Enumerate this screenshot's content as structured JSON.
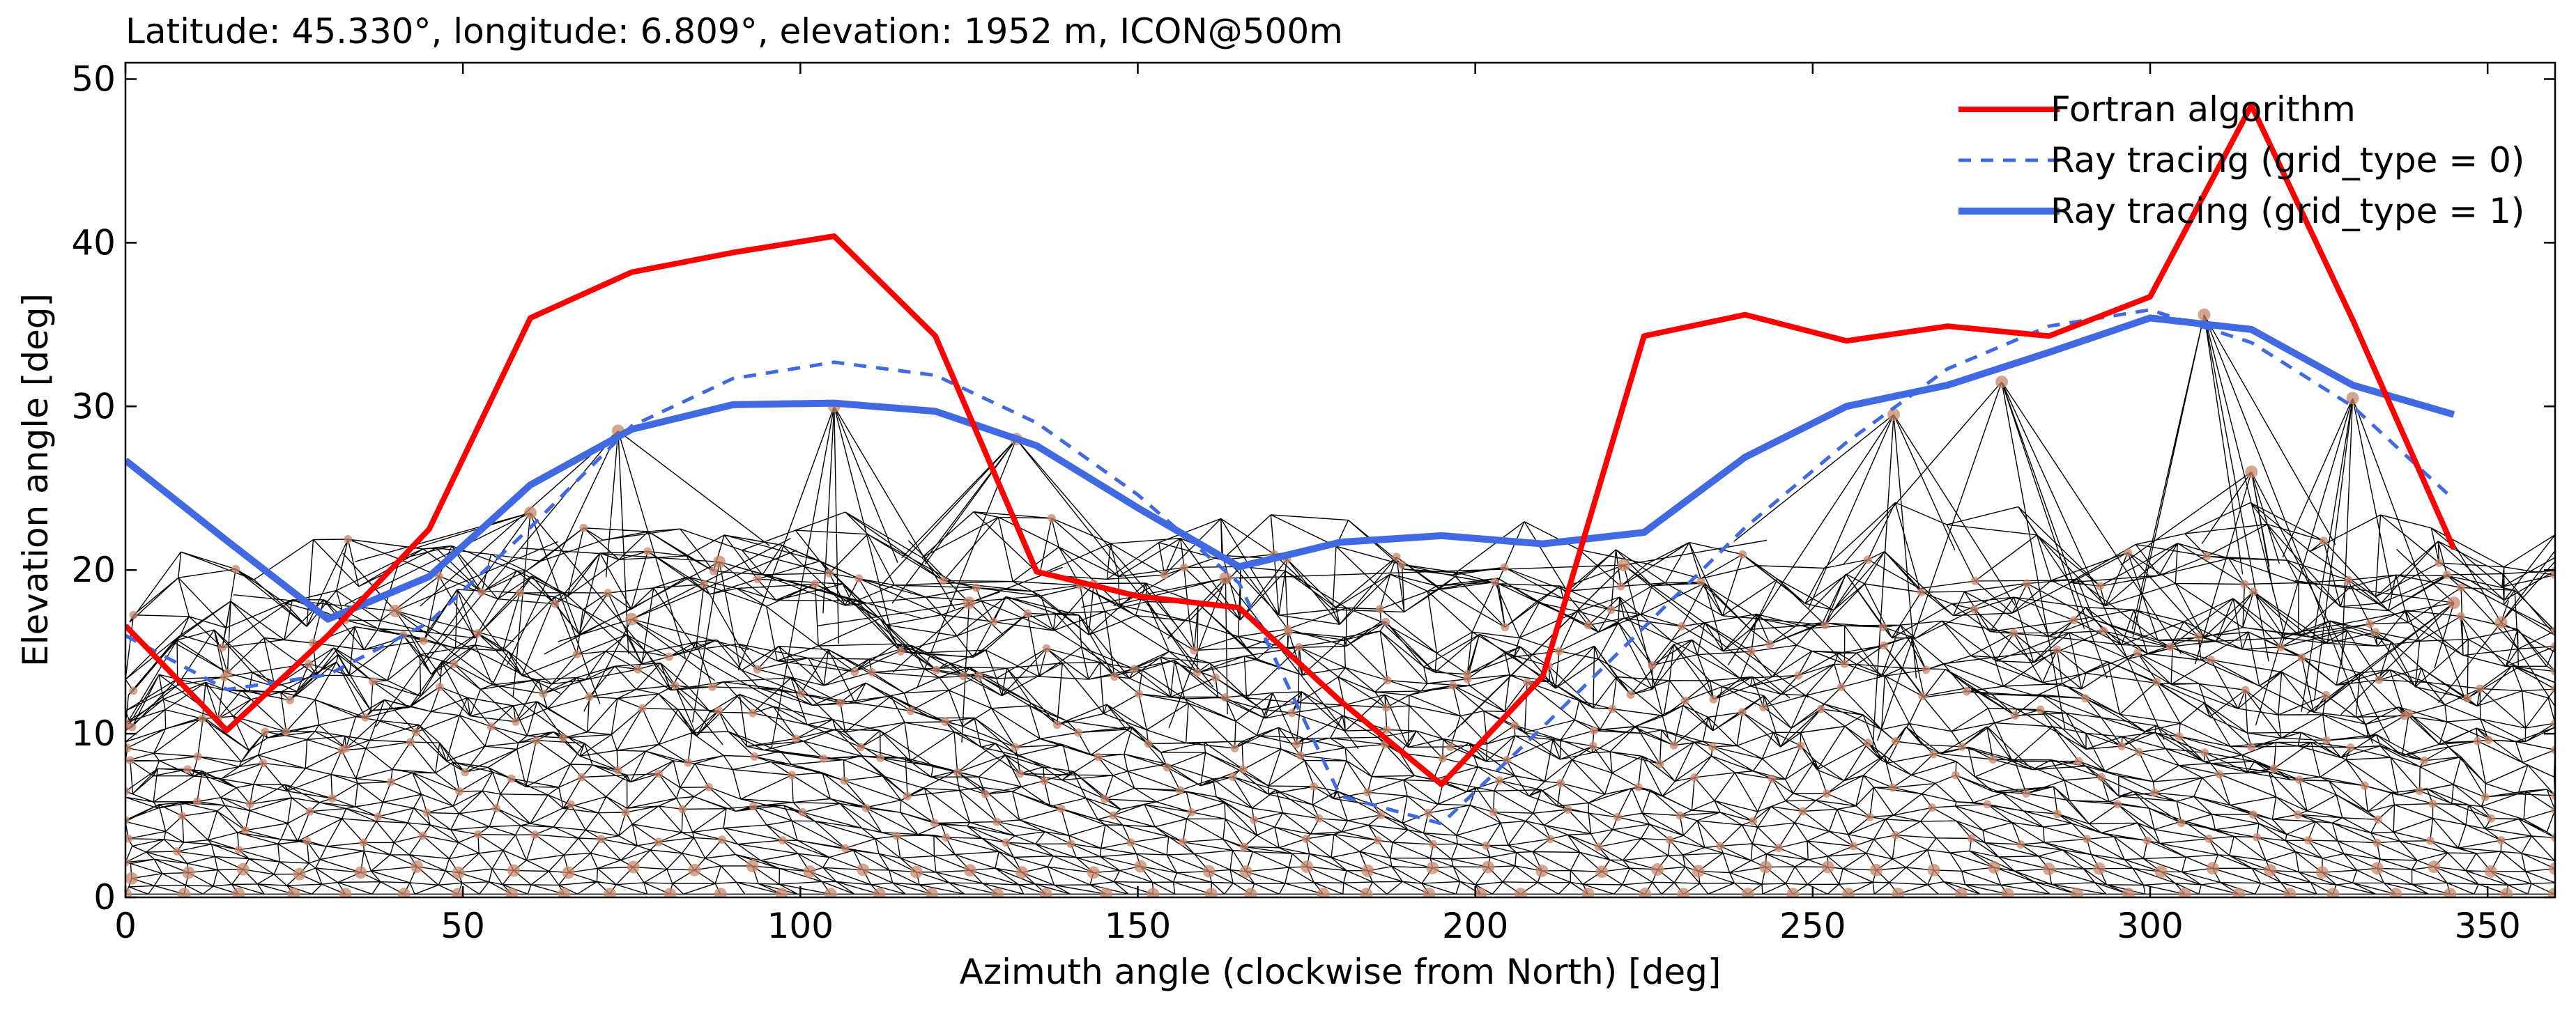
{
  "chart_data": {
    "type": "line",
    "title": "Latitude: 45.330°, longitude: 6.809°, elevation: 1952 m, ICON@500m",
    "xlabel": "Azimuth angle (clockwise from North) [deg]",
    "ylabel": "Elevation angle [deg]",
    "xlim": [
      0,
      360
    ],
    "ylim": [
      0,
      51
    ],
    "x_ticks": [
      0,
      50,
      100,
      150,
      200,
      250,
      300,
      350
    ],
    "y_ticks": [
      0,
      10,
      20,
      30,
      40,
      50
    ],
    "grid": false,
    "legend_position": "top-right",
    "colors": {
      "fortran": "#ff0000",
      "ray0": "#4169e1",
      "ray1": "#4169e1",
      "mesh": "#000000",
      "nodes": "#c8876a"
    },
    "series": [
      {
        "name": "Fortran algorithm",
        "style": "solid",
        "x": [
          0,
          15,
          30,
          45,
          60,
          75,
          90,
          105,
          120,
          135,
          150,
          165,
          180,
          195,
          210,
          225,
          240,
          255,
          270,
          285,
          300,
          315,
          330,
          345
        ],
        "y": [
          16.6,
          10.2,
          16.0,
          22.5,
          35.4,
          38.2,
          39.4,
          40.4,
          34.3,
          19.9,
          18.4,
          17.7,
          12.0,
          6.9,
          13.5,
          34.3,
          35.6,
          34.0,
          34.9,
          34.3,
          36.7,
          48.4,
          35.3,
          21.3
        ]
      },
      {
        "name": "Ray tracing (grid_type = 0)",
        "style": "dashed",
        "x": [
          0,
          15,
          30,
          45,
          60,
          75,
          90,
          105,
          120,
          135,
          150,
          165,
          180,
          195,
          210,
          225,
          240,
          255,
          270,
          285,
          300,
          315,
          330,
          345
        ],
        "y": [
          16.0,
          12.7,
          13.6,
          16.8,
          22.6,
          28.8,
          31.7,
          32.7,
          31.9,
          29.0,
          24.6,
          19.2,
          6.2,
          4.5,
          10.4,
          16.5,
          22.6,
          27.8,
          32.3,
          34.9,
          35.9,
          33.9,
          30.0,
          24.3
        ]
      },
      {
        "name": "Ray tracing (grid_type = 1)",
        "style": "solid-thick",
        "x": [
          0,
          15,
          30,
          45,
          60,
          75,
          90,
          105,
          120,
          135,
          150,
          165,
          180,
          195,
          210,
          225,
          240,
          255,
          270,
          285,
          300,
          315,
          330,
          345
        ],
        "y": [
          26.7,
          21.8,
          17.0,
          19.6,
          25.2,
          28.6,
          30.1,
          30.2,
          29.7,
          27.6,
          23.8,
          20.2,
          21.7,
          22.1,
          21.6,
          22.3,
          26.9,
          30.0,
          31.3,
          33.3,
          35.4,
          34.7,
          31.3,
          29.5
        ]
      }
    ]
  }
}
